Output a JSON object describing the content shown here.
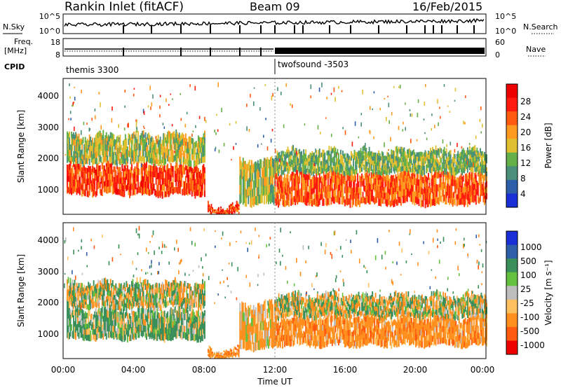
{
  "header": {
    "title": "Rankin Inlet (fitACF)",
    "beam": "Beam 09",
    "date": "16/Feb/2015"
  },
  "top_panels": {
    "nsky_label": "N.Sky",
    "nsearch_label": "N.Search",
    "noise_ticks_left": [
      "10^5",
      "10^0"
    ],
    "noise_ticks_right": [
      "10^5",
      "10^0"
    ],
    "freq_label": "Freq.",
    "freq_unit": "[MHz]",
    "freq_ticks": [
      "18",
      "8"
    ],
    "nave_label": "Nave",
    "nave_ticks": [
      "60",
      "0"
    ],
    "cpid_label": "CPID",
    "cpid_1": "themis 3300",
    "cpid_2": "twofsound -3503"
  },
  "axes": {
    "ylabel": "Slant Range [km]",
    "yticks": [
      "1000",
      "2000",
      "3000",
      "4000"
    ],
    "xticks": [
      "00:00",
      "04:00",
      "08:00",
      "12:00",
      "16:00",
      "20:00",
      "00:00"
    ],
    "xlabel": "Time UT"
  },
  "colorbars": {
    "power_label": "Power [dB]",
    "power_ticks": [
      "4",
      "8",
      "12",
      "16",
      "20",
      "24",
      "28"
    ],
    "velocity_label": "Velocity [m s⁻¹]",
    "velocity_ticks": [
      "-1000",
      "-500",
      "-100",
      "-25",
      "25",
      "100",
      "500",
      "1000"
    ]
  },
  "colors": {
    "power_scale": [
      "#1a2fd6",
      "#2f5fa8",
      "#4a8f7a",
      "#66b04a",
      "#e0c030",
      "#ff9a20",
      "#ff5a10",
      "#ff1a10",
      "#ee0000"
    ],
    "velocity_scale": [
      "#ee0000",
      "#ff5a10",
      "#ff9020",
      "#ffc060",
      "#bdbdbd",
      "#66c040",
      "#3a8f5a",
      "#2f5fa8",
      "#1a2fd6"
    ]
  },
  "chart_data": [
    {
      "type": "heatmap",
      "title": "Power",
      "xlabel": "Time UT",
      "ylabel": "Slant Range [km]",
      "xlim": [
        0,
        24
      ],
      "ylim": [
        180,
        4500
      ],
      "colorbar_label": "Power [dB]",
      "colorbar_range": [
        0,
        32
      ],
      "echo_bands": [
        {
          "t_start": 0.2,
          "t_end": 8.0,
          "range_low": 800,
          "range_high": 1750,
          "value": 26
        },
        {
          "t_start": 0.2,
          "t_end": 8.0,
          "range_low": 1800,
          "range_high": 2700,
          "value": 14
        },
        {
          "t_start": 8.2,
          "t_end": 10.0,
          "range_low": 200,
          "range_high": 450,
          "value": 26
        },
        {
          "t_start": 10.0,
          "t_end": 12.0,
          "range_low": 500,
          "range_high": 1900,
          "value": 14
        },
        {
          "t_start": 12.0,
          "t_end": 24.0,
          "range_low": 500,
          "range_high": 1500,
          "value": 24
        },
        {
          "t_start": 12.0,
          "t_end": 24.0,
          "range_low": 1500,
          "range_high": 2200,
          "value": 12
        }
      ]
    },
    {
      "type": "heatmap",
      "title": "Velocity",
      "xlabel": "Time UT",
      "ylabel": "Slant Range [km]",
      "xlim": [
        0,
        24
      ],
      "ylim": [
        180,
        4500
      ],
      "colorbar_label": "Velocity [m s⁻¹]",
      "colorbar_levels": [
        -1000,
        -500,
        -100,
        -25,
        25,
        100,
        500,
        1000
      ],
      "echo_bands": [
        {
          "t_start": 0.2,
          "t_end": 8.0,
          "range_low": 800,
          "range_high": 1750,
          "value": 150
        },
        {
          "t_start": 0.2,
          "t_end": 8.0,
          "range_low": 1800,
          "range_high": 2600,
          "value": 0
        },
        {
          "t_start": 8.2,
          "t_end": 10.0,
          "range_low": 200,
          "range_high": 450,
          "value": -300
        },
        {
          "t_start": 10.0,
          "t_end": 12.0,
          "range_low": 500,
          "range_high": 1900,
          "value": -200
        },
        {
          "t_start": 12.0,
          "t_end": 24.0,
          "range_low": 600,
          "range_high": 1500,
          "value": -300
        },
        {
          "t_start": 12.0,
          "t_end": 24.0,
          "range_low": 1500,
          "range_high": 2200,
          "value": 0
        }
      ]
    }
  ]
}
